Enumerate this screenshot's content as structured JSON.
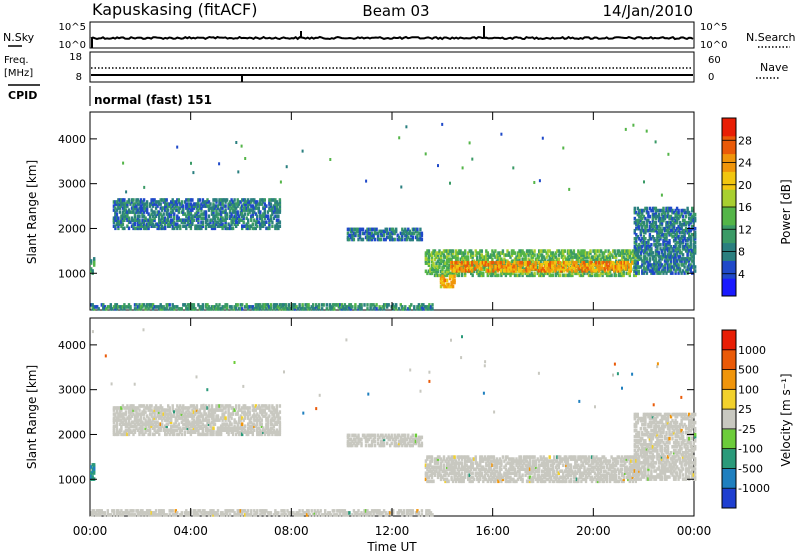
{
  "header": {
    "station": "Kapuskasing (fitACF)",
    "beam": "Beam 03",
    "date": "14/Jan/2010"
  },
  "strip_noise": {
    "left_label": "N.Sky",
    "right_label": "N.Search",
    "left_ticks": [
      "10^5",
      "10^0"
    ],
    "right_ticks": [
      "10^5",
      "10^0"
    ]
  },
  "strip_freq": {
    "left_label_1": "Freq.",
    "left_label_2": "[MHz]",
    "right_label": "Nave",
    "left_ticks": [
      "18",
      "8"
    ],
    "right_ticks": [
      "60",
      "0"
    ]
  },
  "strip_cpid": {
    "label": "CPID",
    "value": "normal (fast) 151"
  },
  "x_axis": {
    "label": "Time UT",
    "ticks": [
      "00:00",
      "04:00",
      "08:00",
      "12:00",
      "16:00",
      "20:00",
      "00:00"
    ]
  },
  "chart_data": [
    {
      "type": "heatmap",
      "panel": "power",
      "ylabel": "Slant Range [km]",
      "ylim": [
        180,
        4600
      ],
      "yticks": [
        1000,
        2000,
        3000,
        4000
      ],
      "xlim_hours": [
        0,
        24
      ],
      "colorbar": {
        "label": "Power [dB]",
        "ticks": [
          "4",
          "8",
          "12",
          "16",
          "20",
          "24",
          "28"
        ],
        "range": [
          0,
          32
        ],
        "colors": [
          "#1a1aff",
          "#1f49c9",
          "#2a7f7f",
          "#3a9a66",
          "#54b548",
          "#a8cf30",
          "#f2c60f",
          "#f0950b",
          "#ea5a08",
          "#e81e05"
        ]
      },
      "echo_bands": [
        {
          "t_start": 0.0,
          "t_end": 0.15,
          "range_low": 1000,
          "range_high": 1350,
          "power": 12
        },
        {
          "t_start": 0.9,
          "t_end": 7.5,
          "range_low": 2000,
          "range_high": 2650,
          "power": 8
        },
        {
          "t_start": 10.2,
          "t_end": 13.2,
          "range_low": 1750,
          "range_high": 2000,
          "power": 8
        },
        {
          "t_start": 13.3,
          "t_end": 21.8,
          "range_low": 950,
          "range_high": 1500,
          "power": 14
        },
        {
          "t_start": 14.3,
          "t_end": 21.6,
          "range_low": 1050,
          "range_high": 1250,
          "power": 24
        },
        {
          "t_start": 13.9,
          "t_end": 14.5,
          "range_low": 700,
          "range_high": 950,
          "power": 22
        },
        {
          "t_start": 21.6,
          "t_end": 24.0,
          "range_low": 1000,
          "range_high": 2450,
          "power": 8
        },
        {
          "t_start": 0.0,
          "t_end": 13.6,
          "range_low": 200,
          "range_high": 320,
          "power": 10
        }
      ]
    },
    {
      "type": "heatmap",
      "panel": "velocity",
      "ylabel": "Slant Range [km]",
      "ylim": [
        180,
        4600
      ],
      "yticks": [
        1000,
        2000,
        3000,
        4000
      ],
      "xlim_hours": [
        0,
        24
      ],
      "ground_scatter_color": "#c8c8c0",
      "colorbar": {
        "label": "Velocity [m s⁻¹]",
        "ticks": [
          "1000",
          "500",
          "100",
          "25",
          "-25",
          "-100",
          "-500",
          "-1000"
        ],
        "colors": [
          "#1f3fd0",
          "#1f7fbf",
          "#2a9a7a",
          "#6ccc3a",
          "#c8c8c0",
          "#f2d12c",
          "#f0950b",
          "#ea5a08",
          "#e81e05"
        ]
      },
      "echo_bands": [
        {
          "t_start": 0.0,
          "t_end": 0.15,
          "range_low": 1000,
          "range_high": 1350,
          "velocity": -400
        },
        {
          "t_start": 0.9,
          "t_end": 7.5,
          "range_low": 2000,
          "range_high": 2650,
          "velocity": 0
        },
        {
          "t_start": 10.2,
          "t_end": 13.2,
          "range_low": 1750,
          "range_high": 2000,
          "velocity": 0
        },
        {
          "t_start": 13.3,
          "t_end": 21.8,
          "range_low": 950,
          "range_high": 1500,
          "velocity": 0
        },
        {
          "t_start": 21.6,
          "t_end": 24.0,
          "range_low": 1000,
          "range_high": 2450,
          "velocity": 0
        },
        {
          "t_start": 0.0,
          "t_end": 13.6,
          "range_low": 200,
          "range_high": 320,
          "velocity": 0
        }
      ]
    }
  ]
}
